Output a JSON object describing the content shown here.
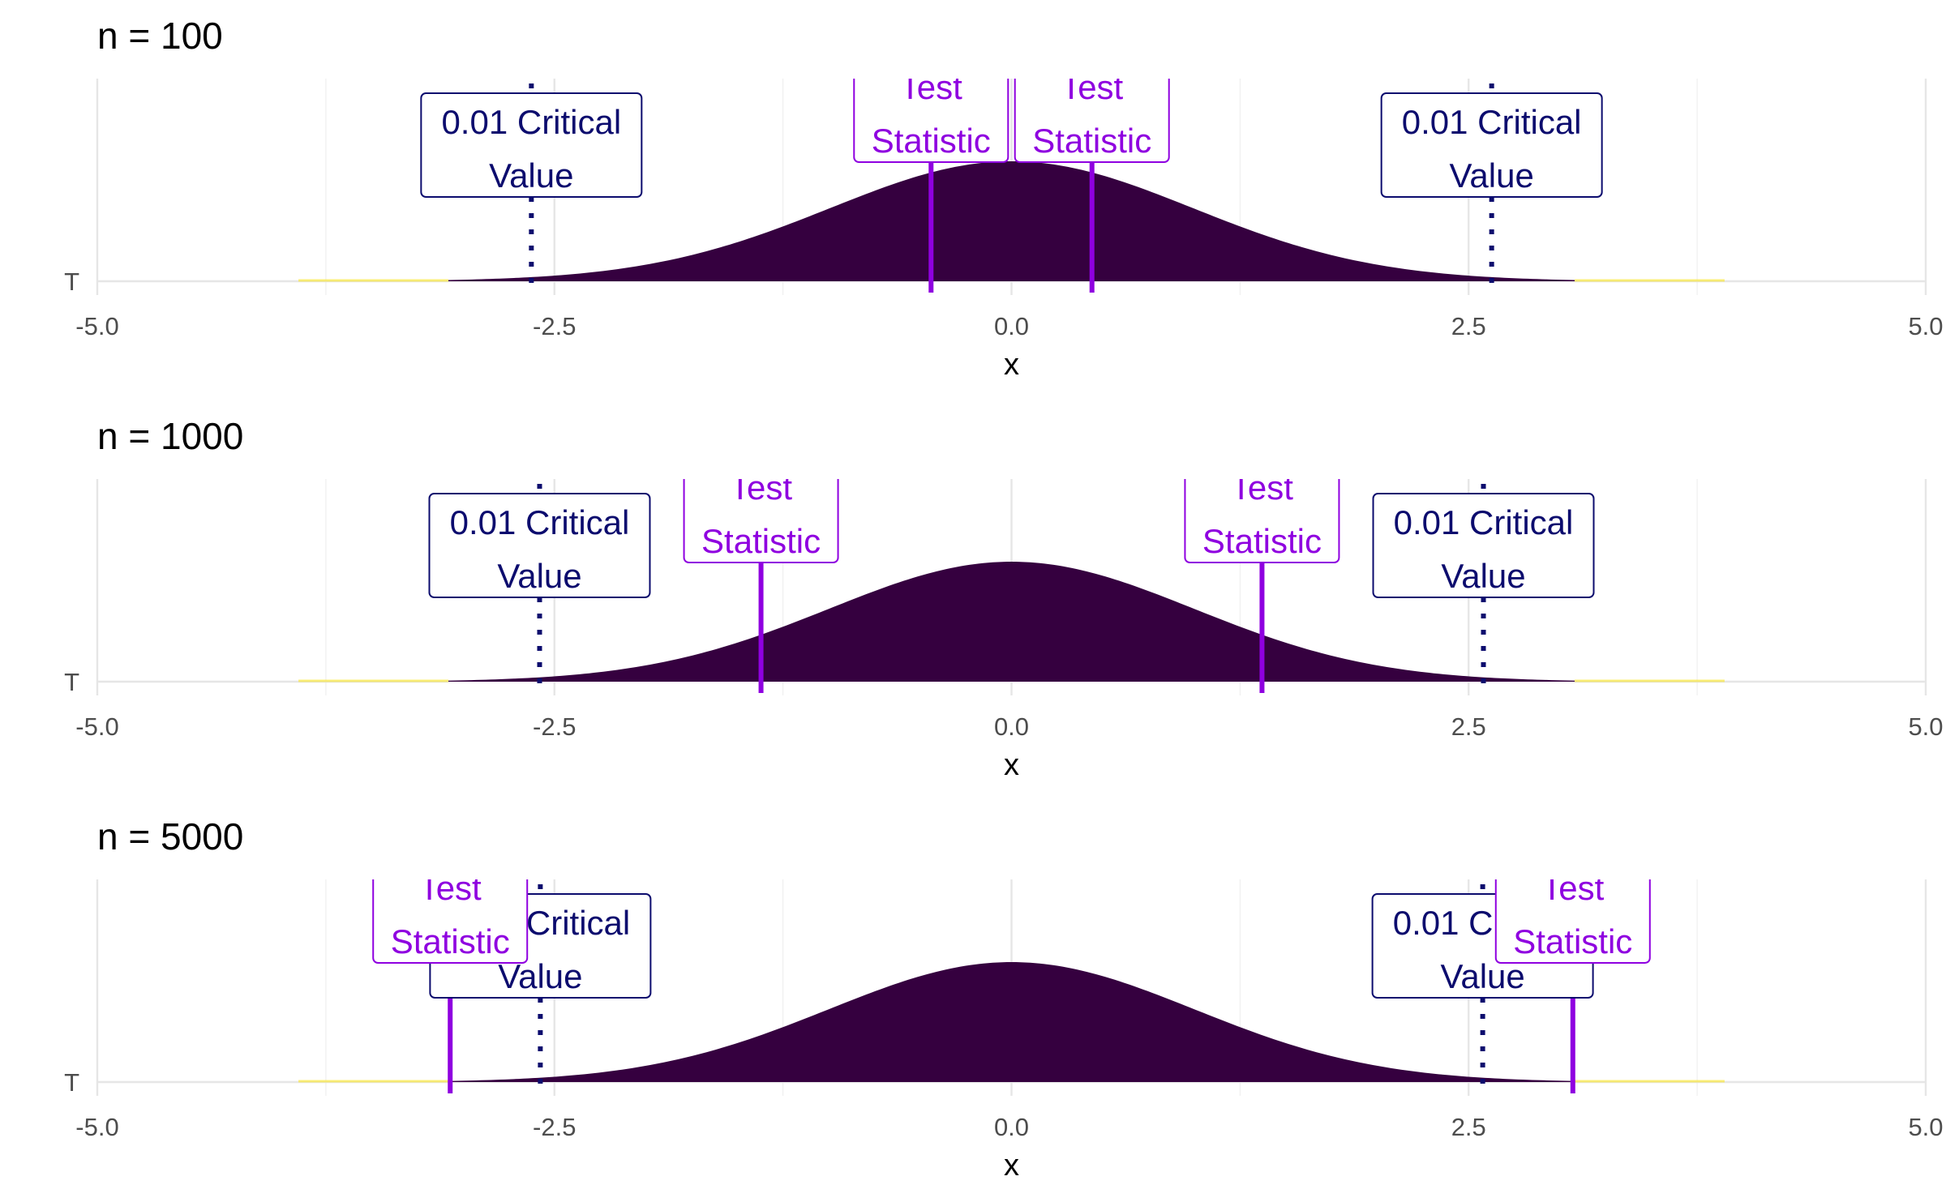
{
  "chart_data": [
    {
      "type": "area",
      "title": "n = 100",
      "xlabel": "x",
      "ylabel": "",
      "xlim": [
        -5.0,
        5.0
      ],
      "x_ticks": [
        "-5.0",
        "-2.5",
        "0.0",
        "2.5",
        "5.0"
      ],
      "y_ticks": [
        "T"
      ],
      "distribution": "t-density",
      "density_peak": 0.399,
      "fill_color": "#35003f",
      "tail_color": "#fde725",
      "critical_values": [
        -2.626,
        2.626
      ],
      "critical_label_lines": [
        "0.01 Critical",
        "Value"
      ],
      "test_statistics": [
        -0.44,
        0.44
      ],
      "test_label_lines": [
        "Test",
        "Statistic"
      ],
      "critical_color": "#0c0c6e",
      "test_color": "#8f00e0"
    },
    {
      "type": "area",
      "title": "n = 1000",
      "xlabel": "x",
      "ylabel": "",
      "xlim": [
        -5.0,
        5.0
      ],
      "x_ticks": [
        "-5.0",
        "-2.5",
        "0.0",
        "2.5",
        "5.0"
      ],
      "y_ticks": [
        "T"
      ],
      "distribution": "t-density",
      "density_peak": 0.399,
      "fill_color": "#35003f",
      "tail_color": "#fde725",
      "critical_values": [
        -2.581,
        2.581
      ],
      "critical_label_lines": [
        "0.01 Critical",
        "Value"
      ],
      "test_statistics": [
        -1.37,
        1.37
      ],
      "test_label_lines": [
        "Test",
        "Statistic"
      ],
      "critical_color": "#0c0c6e",
      "test_color": "#8f00e0"
    },
    {
      "type": "area",
      "title": "n = 5000",
      "xlabel": "x",
      "ylabel": "",
      "xlim": [
        -5.0,
        5.0
      ],
      "x_ticks": [
        "-5.0",
        "-2.5",
        "0.0",
        "2.5",
        "5.0"
      ],
      "y_ticks": [
        "T"
      ],
      "distribution": "t-density",
      "density_peak": 0.399,
      "fill_color": "#35003f",
      "tail_color": "#fde725",
      "critical_values": [
        -2.577,
        2.577
      ],
      "critical_label_lines": [
        "0.01 Critical",
        "Value"
      ],
      "test_statistics": [
        -3.07,
        3.07
      ],
      "test_label_lines": [
        "Test",
        "Statistic"
      ],
      "critical_color": "#0c0c6e",
      "test_color": "#8f00e0"
    }
  ]
}
